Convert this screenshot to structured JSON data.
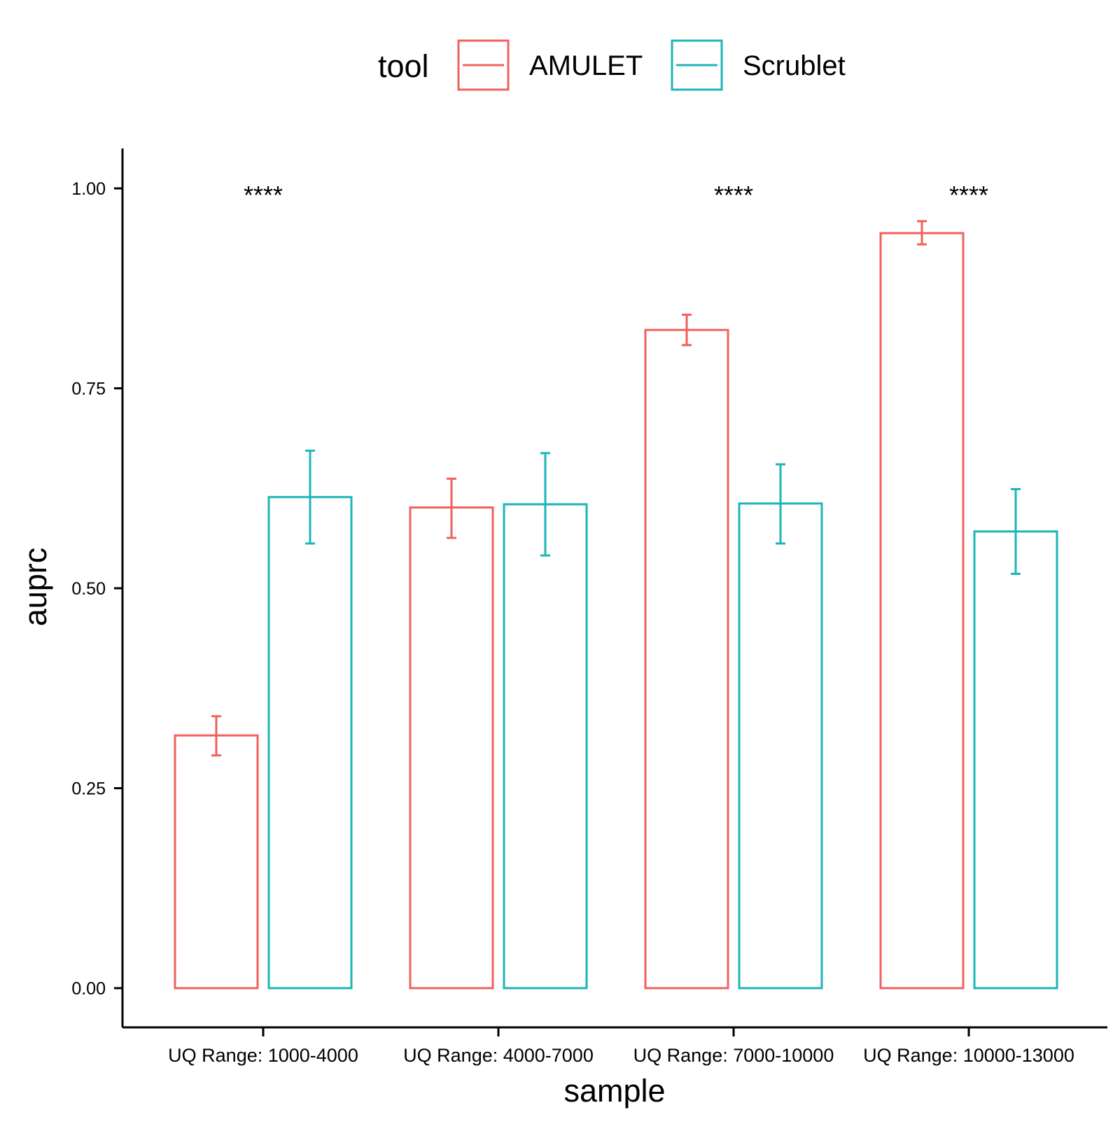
{
  "chart_data": {
    "type": "bar",
    "xlabel": "sample",
    "ylabel": "auprc",
    "categories": [
      "UQ Range: 1000-4000",
      "UQ Range: 4000-7000",
      "UQ Range: 7000-10000",
      "UQ Range: 10000-13000"
    ],
    "series": [
      {
        "name": "AMULET",
        "color": "#F0615D",
        "values": [
          0.316,
          0.601,
          0.823,
          0.944
        ],
        "err_low": [
          0.291,
          0.563,
          0.804,
          0.93
        ],
        "err_high": [
          0.34,
          0.637,
          0.842,
          0.959
        ]
      },
      {
        "name": "Scrublet",
        "color": "#1DB5B8",
        "values": [
          0.614,
          0.605,
          0.606,
          0.571
        ],
        "err_low": [
          0.556,
          0.541,
          0.556,
          0.518
        ],
        "err_high": [
          0.672,
          0.669,
          0.655,
          0.624
        ]
      }
    ],
    "significance": [
      "****",
      "",
      "****",
      "****"
    ],
    "ylim": [
      -0.05,
      1.05
    ],
    "yticks": [
      0.0,
      0.25,
      0.5,
      0.75,
      1.0
    ],
    "ytick_labels": [
      "0.00",
      "0.25",
      "0.50",
      "0.75",
      "1.00"
    ],
    "legend": {
      "title": "tool",
      "position": "top"
    },
    "grid": false
  }
}
